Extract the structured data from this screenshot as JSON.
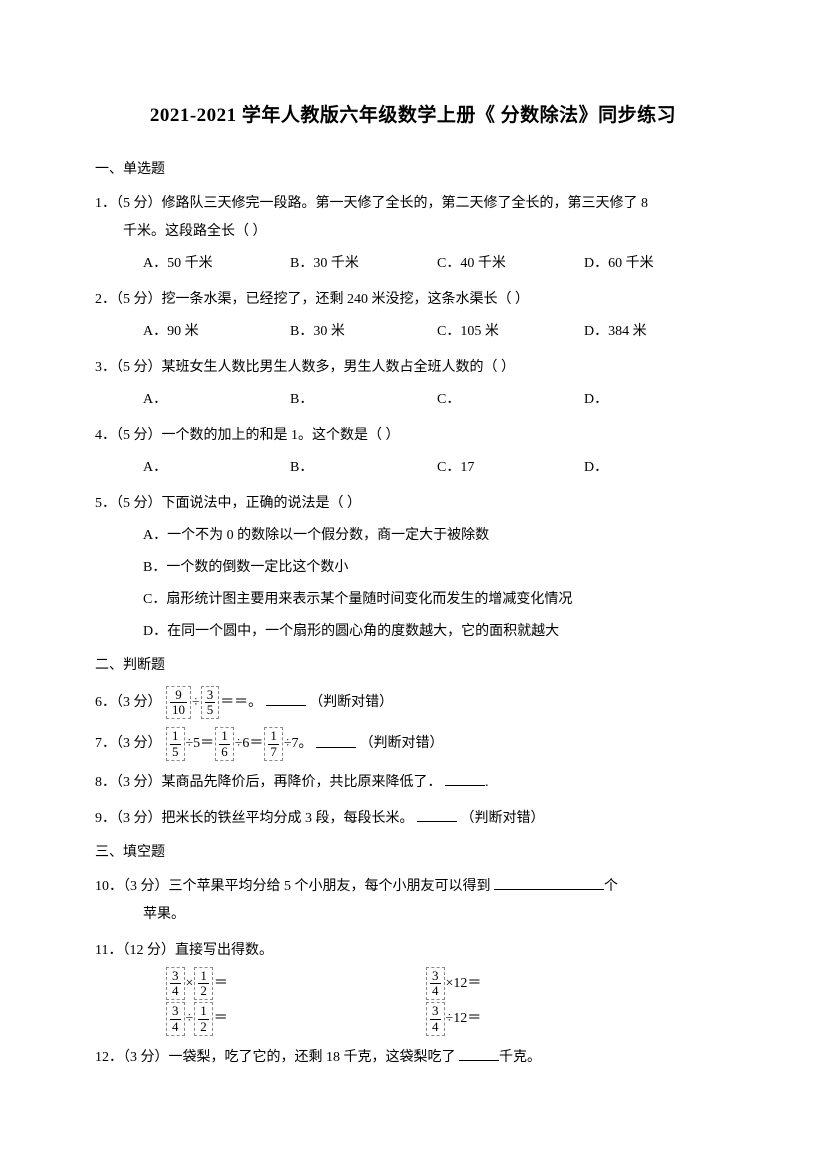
{
  "title": "2021-2021 学年人教版六年级数学上册《 分数除法》同步练习",
  "section1": "一、单选题",
  "q1": {
    "num": "1．",
    "points": "（5 分）",
    "text1": "修路队三天修完一段路。第一天修了全长的，第二天修了全长的，第三天修了 8",
    "text2": "千米。这段路全长（      ）",
    "A": "A．50 千米",
    "B": "B．30 千米",
    "C": "C．40 千米",
    "D": "D．60 千米"
  },
  "q2": {
    "num": "2．",
    "points": "（5 分）",
    "text": "挖一条水渠，已经挖了，还剩 240 米没挖，这条水渠长（      ）",
    "A": "A．90 米",
    "B": "B．30 米",
    "C": "C．105 米",
    "D": "D．384 米"
  },
  "q3": {
    "num": "3．",
    "points": "（5 分）",
    "text": "某班女生人数比男生人数多，男生人数占全班人数的（      ）",
    "A": "A．",
    "B": "B．",
    "C": "C．",
    "D": "D．"
  },
  "q4": {
    "num": "4．",
    "points": "（5 分）",
    "text": "一个数的加上的和是 1。这个数是（      ）",
    "A": "A．",
    "B": "B．",
    "C": "C．17",
    "D": "D．"
  },
  "q5": {
    "num": "5．",
    "points": "（5 分）",
    "text": "下面说法中，正确的说法是（      ）",
    "A": "A．一个不为 0 的数除以一个假分数，商一定大于被除数",
    "B": "B．一个数的倒数一定比这个数小",
    "C": "C．扇形统计图主要用来表示某个量随时间变化而发生的增减变化情况",
    "D": "D．在同一个圆中，一个扇形的圆心角的度数越大，它的面积就越大"
  },
  "section2": "二、判断题",
  "q6": {
    "num": "6．",
    "points": "（3 分）",
    "suffix": "＝＝。  ",
    "judge": "（判断对错）",
    "f1n": "9",
    "f1d": "10",
    "f2n": "3",
    "f2d": "5"
  },
  "q7": {
    "num": "7．",
    "points": "（3 分）",
    "mid1": "÷5＝",
    "mid2": "÷6＝",
    "mid3": "÷7。  ",
    "judge": "（判断对错）",
    "f1n": "1",
    "f1d": "5",
    "f2n": "1",
    "f2d": "6",
    "f3n": "1",
    "f3d": "7"
  },
  "q8": {
    "num": "8．",
    "points": "（3 分）",
    "text": "某商品先降价后，再降价，共比原来降低了．",
    "tail": "."
  },
  "q9": {
    "num": "9．",
    "points": "（3 分）",
    "text": "把米长的铁丝平均分成 3 段，每段长米。  ",
    "judge": "（判断对错）"
  },
  "section3": "三、填空题",
  "q10": {
    "num": "10．",
    "points": "（3 分）",
    "text": "三个苹果平均分给 5 个小朋友，每个小朋友可以得到 ",
    "tail": "个",
    "tail2": "苹果。"
  },
  "q11": {
    "num": "11．",
    "points": "（12 分）",
    "text": "直接写出得数。",
    "c1": {
      "an": "3",
      "ad": "4",
      "op": "×",
      "bn": "1",
      "bd": "2"
    },
    "c2": {
      "an": "3",
      "ad": "4",
      "op": "×",
      "b": "12"
    },
    "c3": {
      "an": "3",
      "ad": "4",
      "op": "÷",
      "bn": "1",
      "bd": "2"
    },
    "c4": {
      "an": "3",
      "ad": "4",
      "op": "÷",
      "b": "12"
    }
  },
  "q12": {
    "num": "12．",
    "points": "（3 分）",
    "text": "一袋梨，吃了它的，还剩 18 千克，这袋梨吃了 ",
    "tail": "千克。"
  }
}
